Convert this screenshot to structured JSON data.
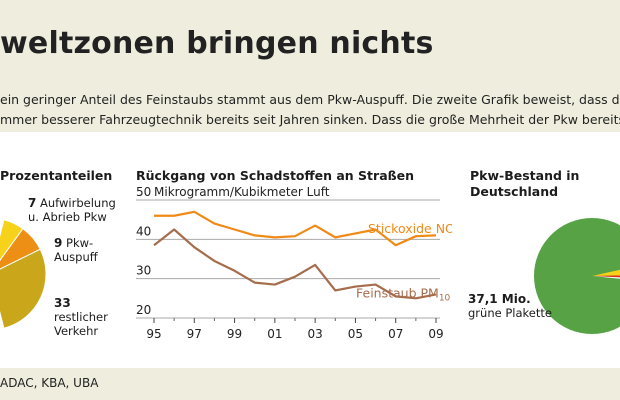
{
  "title": "weltzonen bringen nichts",
  "intro": {
    "line1": "ein geringer Anteil des Feinstaubs stammt aus dem Pkw-Auspuff. Die zweite Grafik beweist, dass die Luf",
    "line2": "mmer besserer Fahrzeugtechnik bereits seit Jahren sinken. Dass die große Mehrheit der Pkw bereits eine g"
  },
  "source": "ADAC, KBA, UBA",
  "chart_data": [
    {
      "type": "pie",
      "title": "Prozentanteilen",
      "slices": [
        {
          "value": 7,
          "label_line1": "Aufwirbelung",
          "label_line2": "u. Abrieb Pkw",
          "color": "#f7d21a"
        },
        {
          "value": 9,
          "label_line1": "Pkw-",
          "label_line2": "Auspuff",
          "color": "#ec8f14"
        },
        {
          "value": 33,
          "label_line1": "restlicher",
          "label_line2": "Verkehr",
          "color": "#c9a61a"
        }
      ]
    },
    {
      "type": "line",
      "title": "Rückgang von Schadstoffen an Straßen",
      "ylabel": "Mikrogramm/Kubikmeter Luft",
      "ylim": [
        20,
        50
      ],
      "yticks": [
        20,
        30,
        40,
        50
      ],
      "xlim": [
        1995,
        2009
      ],
      "x_tick_labels": [
        "95",
        "97",
        "99",
        "01",
        "03",
        "05",
        "07",
        "09"
      ],
      "x_tick_values": [
        1995,
        1997,
        1999,
        2001,
        2003,
        2005,
        2007,
        2009
      ],
      "x": [
        1995,
        1996,
        1997,
        1998,
        1999,
        2000,
        2001,
        2002,
        2003,
        2004,
        2005,
        2006,
        2007,
        2008,
        2009
      ],
      "series": [
        {
          "name": "Stickoxide NO",
          "name_sub": "2",
          "color": "#ef8a17",
          "values": [
            46,
            46,
            47,
            44,
            42.5,
            41,
            40.5,
            40.8,
            43.5,
            40.5,
            41.5,
            42.5,
            38.5,
            40.8,
            41
          ]
        },
        {
          "name": "Feinstaub PM",
          "name_sub": "10",
          "color": "#a56d4c",
          "values": [
            38.5,
            42.5,
            38,
            34.5,
            32,
            29,
            28.5,
            30.5,
            33.5,
            27,
            28,
            28.5,
            25.5,
            25,
            26
          ]
        }
      ]
    },
    {
      "type": "pie",
      "title_line1": "Pkw-Bestand in",
      "title_line2": "Deutschland",
      "slices": [
        {
          "value": 37.1,
          "label_value": "37,1 Mio.",
          "label_text": "grüne Plakette",
          "color": "#57a245"
        },
        {
          "value": null,
          "color": "#f7d21a"
        },
        {
          "value": null,
          "color": "#e5281d"
        },
        {
          "value": null,
          "color": "#ffffff"
        }
      ]
    }
  ]
}
